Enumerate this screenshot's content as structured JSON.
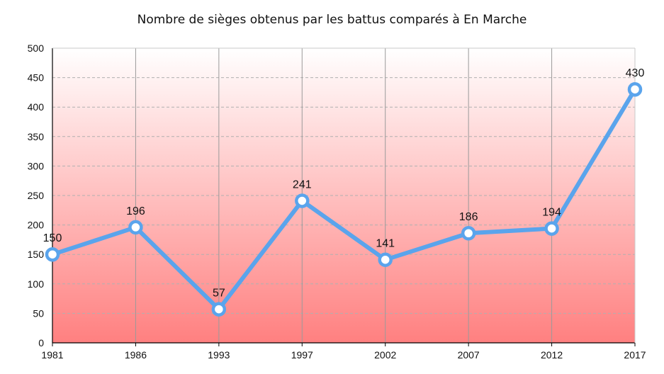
{
  "chart_data": {
    "type": "line",
    "title": "Nombre de sièges obtenus par les battus comparés à En Marche",
    "xlabel": "",
    "ylabel": "",
    "categories": [
      "1981",
      "1986",
      "1993",
      "1997",
      "2002",
      "2007",
      "2012",
      "2017"
    ],
    "series": [
      {
        "values": [
          150,
          196,
          57,
          241,
          141,
          186,
          194,
          430
        ]
      }
    ],
    "ylim": [
      0,
      500
    ],
    "yticks": [
      0,
      50,
      100,
      150,
      200,
      250,
      300,
      350,
      400,
      450,
      500
    ],
    "grid": true,
    "legend": "none",
    "colors": {
      "line": "#5aa4ec",
      "marker_fill": "#ffffff",
      "background_top": "#ffffff",
      "background_bottom": "#ff8080",
      "grid": "#b0b0b0"
    }
  }
}
